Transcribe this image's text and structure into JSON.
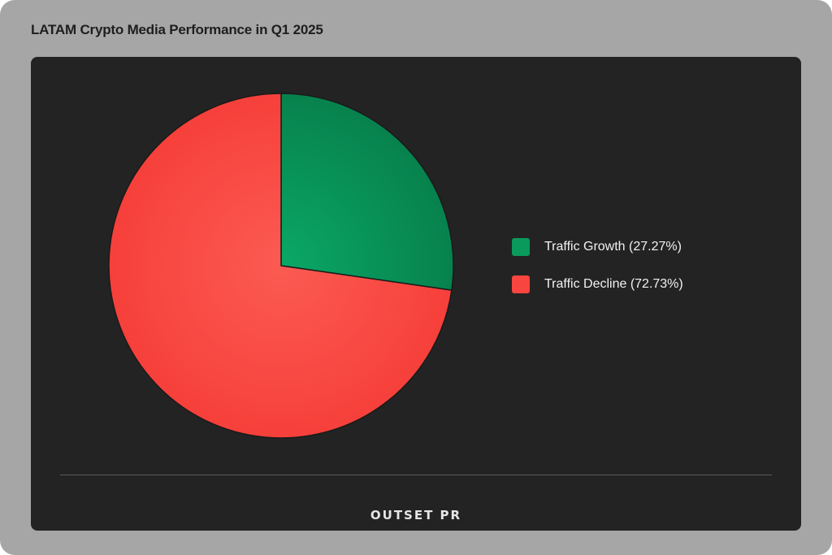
{
  "header": {
    "title": "LATAM Crypto Media Performance in Q1 2025"
  },
  "chart_data": {
    "type": "pie",
    "title": "LATAM Crypto Media Performance in Q1 2025",
    "slices": [
      {
        "label": "Traffic Growth (27.27%)",
        "value": 27.27,
        "color": "#0a9a5c",
        "color_light": "#0aa866",
        "color_dark": "#077e4b"
      },
      {
        "label": "Traffic Decline (72.73%)",
        "value": 72.73,
        "color": "#f8453f",
        "color_light": "#fb5b52",
        "color_dark": "#f63d38"
      }
    ],
    "start_angle_deg": 0,
    "direction": "clockwise",
    "legend_position": "right"
  },
  "legend": {
    "items": [
      {
        "label": "Traffic Growth (27.27%)",
        "color": "#0a9a5c"
      },
      {
        "label": "Traffic Decline (72.73%)",
        "color": "#f8453f"
      }
    ]
  },
  "footer": {
    "brand": "OUTSET PR"
  }
}
